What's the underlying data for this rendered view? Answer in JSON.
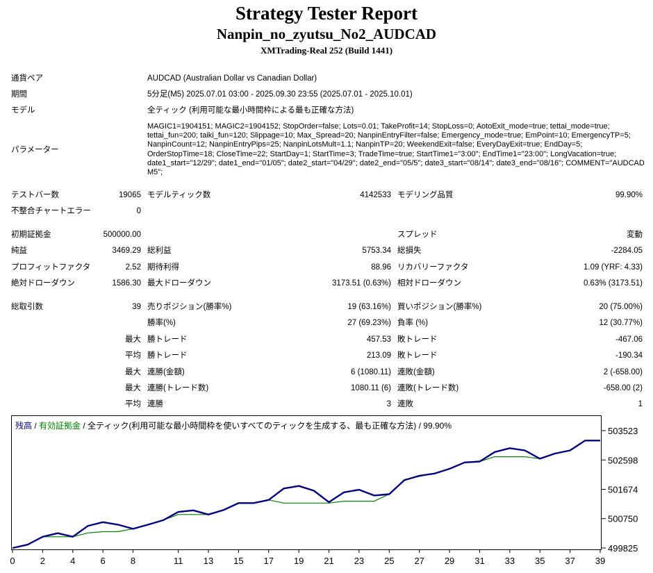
{
  "report": {
    "title": "Strategy Tester Report",
    "expert": "Nanpin_no_zyutsu_No2_AUDCAD",
    "server": "XMTrading-Real 252 (Build 1441)"
  },
  "info": {
    "symbol_label": "通貨ペア",
    "symbol_value": "AUDCAD (Australian Dollar vs Canadian Dollar)",
    "period_label": "期間",
    "period_value": "5分足(M5) 2025.07.01 03:00 - 2025.09.30 23:55 (2025.07.01 - 2025.10.01)",
    "model_label": "モデル",
    "model_value": "全ティック (利用可能な最小時間枠による最も正確な方法)",
    "params_label": "パラメーター",
    "params_value": "MAGIC1=1904151; MAGIC2=1904152; StopOrder=false; Lots=0.01; TakeProfit=14; StopLoss=0; AotoExit_mode=true; tettai_mode=true; tettai_fun=200; taiki_fun=120; Slippage=10; Max_Spread=20; NanpinEntryFilter=false; Emergency_mode=true; EmPoint=10; EmergencyTP=5; NanpinCount=12; NanpinEntryPips=25; NanpinLotsMult=1.1; NanpinTP=20; WeekendExit=false; EveryDayExit=true; EndDay=5; OrderStopTime=18; CloseTime=22; StartDay=1; StartTime=3; TradeTime=true; StartTime1=\"3:00\"; EndTime1=\"23:00\"; LongVacation=true; date1_start=\"12/29\"; date1_end=\"01/05\"; date2_start=\"04/29\"; date2_end=\"05/5\"; date3_start=\"08/14\"; date3_end=\"08/16\"; COMMENT=\"AUDCAD M5\";"
  },
  "stats": {
    "bars_label": "テストバー数",
    "bars_value": "19065",
    "ticks_label": "モデルティック数",
    "ticks_value": "4142533",
    "quality_label": "モデリング品質",
    "quality_value": "99.90%",
    "mismatch_label": "不整合チャートエラー",
    "mismatch_value": "0",
    "deposit_label": "初期証拠金",
    "deposit_value": "500000.00",
    "spread_label": "スプレッド",
    "spread_value": "変動",
    "net_label": "純益",
    "net_value": "3469.29",
    "gross_profit_label": "総利益",
    "gross_profit_value": "5753.34",
    "gross_loss_label": "総損失",
    "gross_loss_value": "-2284.05",
    "pf_label": "プロフィットファクタ",
    "pf_value": "2.52",
    "expected_label": "期待利得",
    "expected_value": "88.96",
    "recovery_label": "リカバリーファクタ",
    "recovery_value": "1.09 (YRF: 4.33)",
    "abs_dd_label": "絶対ドローダウン",
    "abs_dd_value": "1586.30",
    "max_dd_label": "最大ドローダウン",
    "max_dd_value": "3173.51 (0.63%)",
    "rel_dd_label": "相対ドローダウン",
    "rel_dd_value": "0.63% (3173.51)",
    "trades_label": "総取引数",
    "trades_value": "39",
    "short_label": "売りポジション(勝率%)",
    "short_value": "19 (63.16%)",
    "long_label": "買いポジション(勝率%)",
    "long_value": "20 (75.00%)",
    "win_rate_label": "勝率(%)",
    "win_rate_value": "27 (69.23%)",
    "loss_rate_label": "負率 (%)",
    "loss_rate_value": "12 (30.77%)",
    "max_word": "最大",
    "avg_word": "平均",
    "largest_win_label": "勝トレード",
    "largest_win_value": "457.53",
    "largest_loss_label": "敗トレード",
    "largest_loss_value": "-467.06",
    "avg_win_label": "勝トレード",
    "avg_win_value": "213.09",
    "avg_loss_label": "敗トレード",
    "avg_loss_value": "-190.34",
    "max_consec_wins_label": "連勝(金額)",
    "max_consec_wins_value": "6 (1080.11)",
    "max_consec_losses_label": "連敗(金額)",
    "max_consec_losses_value": "2 (-658.00)",
    "max_consec_profit_label": "連勝(トレード数)",
    "max_consec_profit_value": "1080.11 (6)",
    "max_consec_loss_label": "連敗(トレード数)",
    "max_consec_loss_value": "-658.00 (2)",
    "avg_consec_wins_label": "連勝",
    "avg_consec_wins_value": "3",
    "avg_consec_losses_label": "連敗",
    "avg_consec_losses_value": "1"
  },
  "chart_legend": {
    "balance": "残高",
    "sep1": " / ",
    "equity": "有効証拠金",
    "rest": " / 全ティック(利用可能な最小時間枠を使いすべてのティックを生成する、最も正確な方法) / 99.90%"
  },
  "colors": {
    "balance": "#000080",
    "equity": "#008000"
  },
  "chart_data": {
    "type": "line",
    "x": [
      0,
      1,
      2,
      3,
      4,
      5,
      6,
      7,
      8,
      9,
      10,
      11,
      12,
      13,
      14,
      15,
      16,
      17,
      18,
      19,
      20,
      21,
      22,
      23,
      24,
      25,
      26,
      27,
      28,
      29,
      30,
      31,
      32,
      33,
      34,
      35,
      36,
      37,
      38,
      39
    ],
    "series": [
      {
        "name": "残高",
        "values": [
          499825,
          499930,
          500180,
          500290,
          500180,
          500520,
          500640,
          500560,
          500430,
          500560,
          500700,
          500960,
          501010,
          500880,
          501020,
          501240,
          501240,
          501340,
          501700,
          501780,
          501630,
          501270,
          501580,
          501660,
          501480,
          501520,
          501960,
          502100,
          502170,
          502320,
          502520,
          502550,
          502850,
          502970,
          502900,
          502640,
          502800,
          502900,
          503210,
          503210
        ]
      },
      {
        "name": "有効証拠金",
        "values": [
          499825,
          499930,
          500180,
          500180,
          500180,
          500300,
          500340,
          500340,
          500430,
          500560,
          500700,
          500880,
          500880,
          500880,
          501020,
          501240,
          501240,
          501340,
          501240,
          501240,
          501240,
          501240,
          501300,
          501300,
          501300,
          501520,
          501980,
          502080,
          502170,
          502320,
          502520,
          502550,
          502700,
          502700,
          502700,
          502640,
          502800,
          502900,
          503210,
          503210
        ]
      }
    ],
    "y_ticks": [
      503523,
      502598,
      501674,
      500750,
      499825
    ],
    "x_ticks": [
      0,
      2,
      4,
      6,
      8,
      11,
      13,
      15,
      17,
      19,
      21,
      23,
      25,
      27,
      29,
      31,
      33,
      35,
      37,
      39
    ],
    "ylim": [
      499825,
      503523
    ],
    "xlim": [
      0,
      39
    ],
    "grid": false,
    "legend": "top-left"
  }
}
